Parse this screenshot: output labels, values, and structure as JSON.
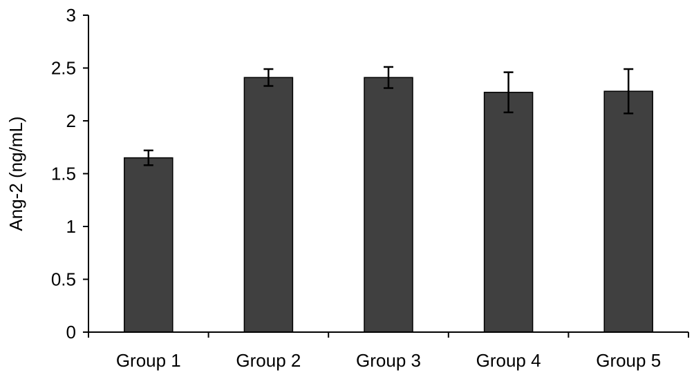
{
  "chart_data": {
    "type": "bar",
    "title": "",
    "xlabel": "",
    "ylabel": "Ang-2 (ng/mL)",
    "categories": [
      "Group 1",
      "Group 2",
      "Group 3",
      "Group 4",
      "Group 5"
    ],
    "series": [
      {
        "values": [
          1.65,
          2.41,
          2.41,
          2.27,
          2.28
        ],
        "error": [
          0.07,
          0.08,
          0.1,
          0.19,
          0.21
        ],
        "color": "#404040"
      }
    ],
    "ylim": [
      0,
      3
    ],
    "yticks": [
      0,
      0.5,
      1,
      1.5,
      2,
      2.5,
      3
    ],
    "ytick_labels": [
      "0",
      "0.5",
      "1",
      "1.5",
      "2",
      "2.5",
      "3"
    ],
    "grid": false,
    "legend": "none"
  }
}
